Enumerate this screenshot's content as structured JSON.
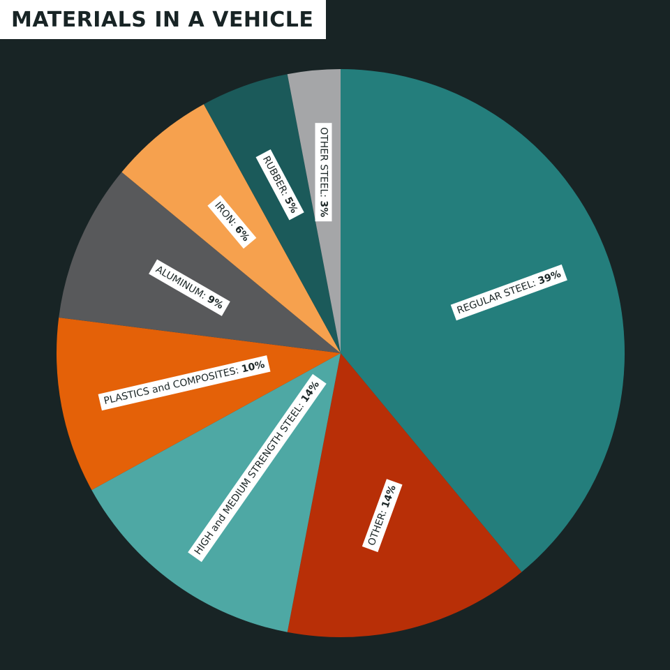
{
  "chart_data": {
    "type": "pie",
    "title": "MATERIALS IN A VEHICLE",
    "slices": [
      {
        "label": "REGULAR STEEL",
        "value": 39,
        "value_text": "39%",
        "color": "#247e7c"
      },
      {
        "label": "OTHER",
        "value": 14,
        "value_text": "14%",
        "color": "#b82f07"
      },
      {
        "label": "HIGH and MEDIUM STRENGTH STEEL",
        "value": 14,
        "value_text": "14%",
        "color": "#4ea8a4"
      },
      {
        "label": "PLASTICS and COMPOSITES",
        "value": 10,
        "value_text": "10%",
        "color": "#e46108"
      },
      {
        "label": "ALUMINUM",
        "value": 9,
        "value_text": "9%",
        "color": "#58595b"
      },
      {
        "label": "IRON",
        "value": 6,
        "value_text": "6%",
        "color": "#f6a14e"
      },
      {
        "label": "RUBBER",
        "value": 5,
        "value_text": "5%",
        "color": "#1b5a5a"
      },
      {
        "label": "OTHER STEEL",
        "value": 3,
        "value_text": "3%",
        "color": "#a5a6a8"
      }
    ],
    "start": "top",
    "direction": "clockwise",
    "background": "#182425"
  }
}
